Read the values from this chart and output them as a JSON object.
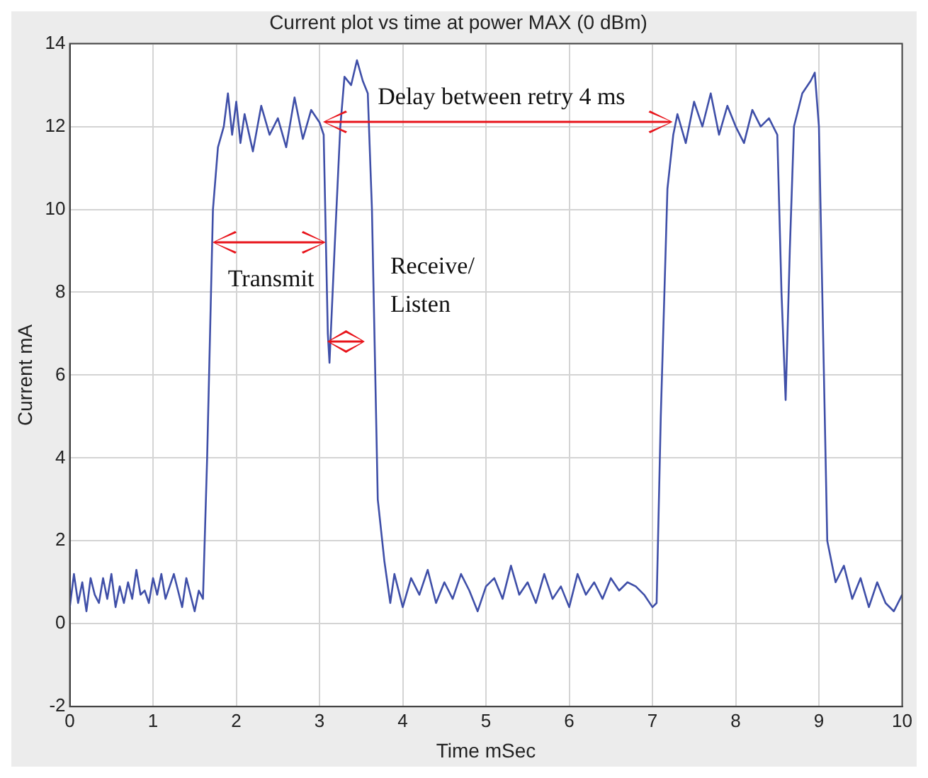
{
  "chart_data": {
    "type": "line",
    "title": "Current plot vs time at power MAX (0 dBm)",
    "xlabel": "Time mSec",
    "ylabel": "Current mA",
    "xlim": [
      0,
      10
    ],
    "xticks": [
      0,
      1,
      2,
      3,
      4,
      5,
      6,
      7,
      8,
      9,
      10
    ],
    "ylim": [
      -2,
      14
    ],
    "yticks": [
      -2,
      0,
      2,
      4,
      6,
      8,
      10,
      12,
      14
    ],
    "grid": true,
    "legend": false,
    "marker": "none",
    "line_style": "solid",
    "annotations": [
      "Delay between retry 4 ms",
      "Transmit",
      "Receive/\nListen"
    ],
    "series": [
      {
        "color": "#3f4fa8",
        "x": [
          0,
          0.05,
          0.1,
          0.15,
          0.2,
          0.25,
          0.3,
          0.35,
          0.4,
          0.45,
          0.5,
          0.55,
          0.6,
          0.65,
          0.7,
          0.75,
          0.8,
          0.85,
          0.9,
          0.95,
          1.0,
          1.05,
          1.1,
          1.15,
          1.2,
          1.25,
          1.3,
          1.35,
          1.4,
          1.45,
          1.5,
          1.55,
          1.6,
          1.65,
          1.72,
          1.78,
          1.85,
          1.9,
          1.95,
          2.0,
          2.05,
          2.1,
          2.2,
          2.3,
          2.4,
          2.5,
          2.6,
          2.7,
          2.8,
          2.9,
          3.0,
          3.05,
          3.1,
          3.12,
          3.18,
          3.25,
          3.3,
          3.38,
          3.45,
          3.52,
          3.58,
          3.63,
          3.7,
          3.78,
          3.85,
          3.9,
          4.0,
          4.1,
          4.2,
          4.3,
          4.4,
          4.5,
          4.6,
          4.7,
          4.8,
          4.9,
          5.0,
          5.1,
          5.2,
          5.3,
          5.4,
          5.5,
          5.6,
          5.7,
          5.8,
          5.9,
          6.0,
          6.1,
          6.2,
          6.3,
          6.4,
          6.5,
          6.6,
          6.7,
          6.8,
          6.9,
          7.0,
          7.05,
          7.1,
          7.18,
          7.25,
          7.3,
          7.4,
          7.5,
          7.6,
          7.7,
          7.8,
          7.9,
          8.0,
          8.1,
          8.2,
          8.3,
          8.4,
          8.5,
          8.55,
          8.6,
          8.65,
          8.7,
          8.8,
          8.9,
          8.95,
          9.0,
          9.05,
          9.1,
          9.2,
          9.3,
          9.4,
          9.5,
          9.6,
          9.7,
          9.8,
          9.9,
          10.0
        ],
        "values": [
          0.4,
          1.2,
          0.5,
          1.0,
          0.3,
          1.1,
          0.7,
          0.5,
          1.1,
          0.6,
          1.2,
          0.4,
          0.9,
          0.5,
          1.0,
          0.6,
          1.3,
          0.7,
          0.8,
          0.5,
          1.1,
          0.7,
          1.2,
          0.6,
          0.9,
          1.2,
          0.8,
          0.4,
          1.1,
          0.7,
          0.3,
          0.8,
          0.6,
          4.0,
          10.0,
          11.5,
          12.0,
          12.8,
          11.8,
          12.6,
          11.6,
          12.3,
          11.4,
          12.5,
          11.8,
          12.2,
          11.5,
          12.7,
          11.7,
          12.4,
          12.1,
          11.8,
          7.0,
          6.3,
          9.0,
          12.0,
          13.2,
          13.0,
          13.6,
          13.1,
          12.8,
          10.0,
          3.0,
          1.5,
          0.5,
          1.2,
          0.4,
          1.1,
          0.7,
          1.3,
          0.5,
          1.0,
          0.6,
          1.2,
          0.8,
          0.3,
          0.9,
          1.1,
          0.6,
          1.4,
          0.7,
          1.0,
          0.5,
          1.2,
          0.6,
          0.9,
          0.4,
          1.2,
          0.7,
          1.0,
          0.6,
          1.1,
          0.8,
          1.0,
          0.9,
          0.7,
          0.4,
          0.5,
          5.0,
          10.5,
          11.8,
          12.3,
          11.6,
          12.6,
          12.0,
          12.8,
          11.8,
          12.5,
          12.0,
          11.6,
          12.4,
          12.0,
          12.2,
          11.8,
          8.0,
          5.4,
          9.0,
          12.0,
          12.8,
          13.1,
          13.3,
          12.0,
          7.0,
          2.0,
          1.0,
          1.4,
          0.6,
          1.1,
          0.4,
          1.0,
          0.5,
          0.3,
          0.7
        ]
      }
    ]
  }
}
